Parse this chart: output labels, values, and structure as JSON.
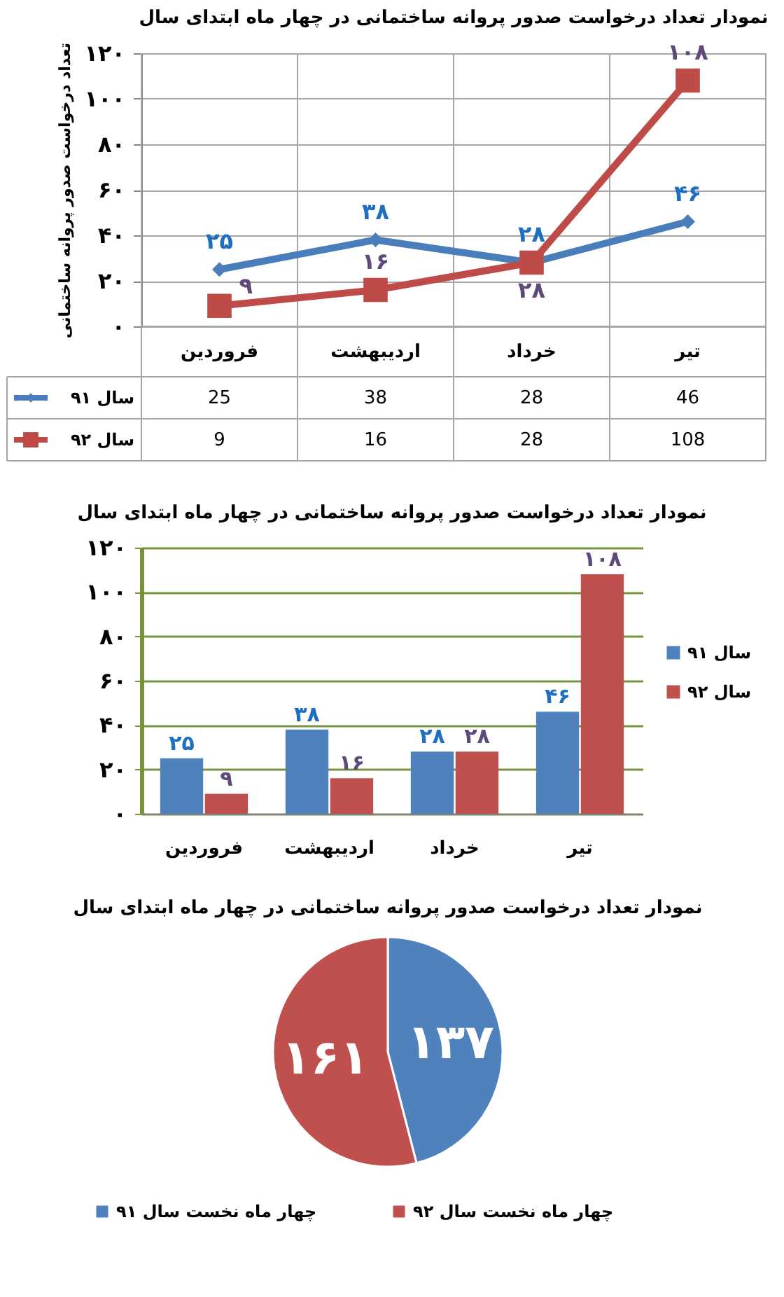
{
  "chart_data": [
    {
      "type": "line",
      "title": "نمودار تعداد درخواست صدور پروانه ساختمانی در چهار ماه ابتدای سال",
      "ylabel": "تعداد درخواست صدور پروانه ساختمانی",
      "categories": [
        "فروردین",
        "اردیبهشت",
        "خرداد",
        "تیر"
      ],
      "series": [
        {
          "name": "سال ۹۱",
          "color": "#4a7ebb",
          "marker": "diamond",
          "values": [
            25,
            38,
            28,
            46
          ]
        },
        {
          "name": "سال ۹۲",
          "color": "#be4b48",
          "marker": "square",
          "values": [
            9,
            16,
            28,
            108
          ]
        }
      ],
      "ylim": [
        0,
        120
      ],
      "yticks": [
        {
          "value": 0,
          "label": "۰"
        },
        {
          "value": 20,
          "label": "۲۰"
        },
        {
          "value": 40,
          "label": "۴۰"
        },
        {
          "value": 60,
          "label": "۶۰"
        },
        {
          "value": 80,
          "label": "۸۰"
        },
        {
          "value": 100,
          "label": "۱۰۰"
        },
        {
          "value": 120,
          "label": "۱۲۰"
        }
      ],
      "grid": true,
      "legend": "bottom left",
      "data_labels": true,
      "annotations": [
        {
          "text": "۲۵",
          "x": "فروردین",
          "y": 25
        },
        {
          "text": "۳۸",
          "x": "اردیبهشت",
          "y": 38
        },
        {
          "text": "۲۸",
          "x": "خرداد",
          "y": 28
        },
        {
          "text": "۴۶",
          "x": "تیر",
          "y": 46
        },
        {
          "text": "۹",
          "x": "فروردین",
          "y": 9
        },
        {
          "text": "۱۶",
          "x": "اردیبهشت",
          "y": 16
        },
        {
          "text": "۲۸",
          "x": "خرداد",
          "y": 28
        },
        {
          "text": "۱۰۸",
          "x": "تیر",
          "y": 108
        }
      ]
    },
    {
      "type": "bar",
      "title": "نمودار تعداد درخواست صدور پروانه ساختمانی در چهار ماه ابتدای سال",
      "categories": [
        "فروردین",
        "اردیبهشت",
        "خرداد",
        "تیر"
      ],
      "series": [
        {
          "name": "سال ۹۱",
          "color": "#4f81bd",
          "values": [
            25,
            38,
            28,
            46
          ],
          "value_labels": [
            "۲۵",
            "۳۸",
            "۲۸",
            "۴۶"
          ]
        },
        {
          "name": "سال ۹۲",
          "color": "#c0504d",
          "values": [
            9,
            16,
            28,
            108
          ],
          "value_labels": [
            "۹",
            "۱۶",
            "۲۸",
            "۱۰۸"
          ]
        }
      ],
      "ylim": [
        0,
        120
      ],
      "yticks": [
        {
          "value": 0,
          "label": "۰"
        },
        {
          "value": 20,
          "label": "۲۰"
        },
        {
          "value": 40,
          "label": "۴۰"
        },
        {
          "value": 60,
          "label": "۶۰"
        },
        {
          "value": 80,
          "label": "۸۰"
        },
        {
          "value": 100,
          "label": "۱۰۰"
        },
        {
          "value": 120,
          "label": "۱۲۰"
        }
      ],
      "grid": "y",
      "legend": "right"
    },
    {
      "type": "pie",
      "title": "نمودار تعداد درخواست صدور پروانه ساختمانی در چهار ماه ابتدای سال",
      "categories": [
        "چهار ماه نخست سال ۹۱",
        "چهار ماه نخست سال ۹۲"
      ],
      "values": [
        137,
        161
      ],
      "colors": [
        "#4f81bd",
        "#c0504d"
      ],
      "value_labels": [
        "۱۳۷",
        "۱۶۱"
      ],
      "legend": "bottom"
    }
  ]
}
